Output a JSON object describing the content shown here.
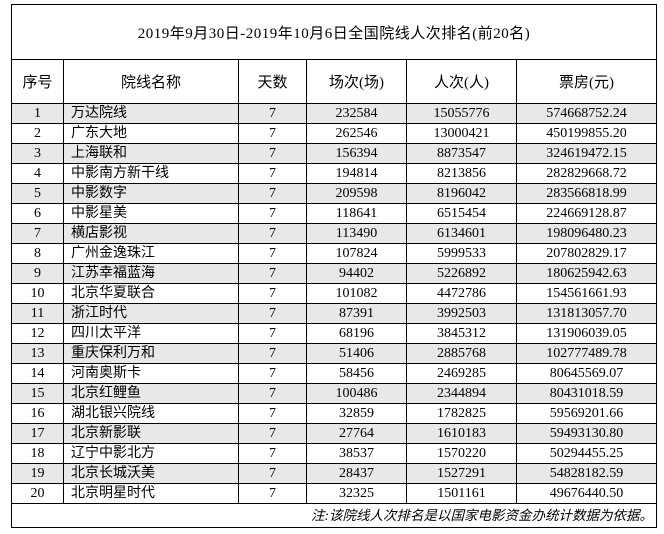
{
  "title": "2019年9月30日-2019年10月6日全国院线人次排名(前20名)",
  "note": "注:该院线人次排名是以国家电影资金办统计数据为依据。",
  "colors": {
    "stripe_row_bg": "#e8e8e8",
    "border": "#000000",
    "text": "#000000",
    "background": "#ffffff"
  },
  "table": {
    "headers": [
      "序号",
      "院线名称",
      "天数",
      "场次(场)",
      "人次(人)",
      "票房(元)"
    ],
    "column_keys": [
      "rank",
      "name",
      "days",
      "sessions",
      "admissions",
      "box_office"
    ],
    "rows": [
      {
        "rank": "1",
        "name": "万达院线",
        "days": "7",
        "sessions": "232584",
        "admissions": "15055776",
        "box_office": "574668752.24"
      },
      {
        "rank": "2",
        "name": "广东大地",
        "days": "7",
        "sessions": "262546",
        "admissions": "13000421",
        "box_office": "450199855.20"
      },
      {
        "rank": "3",
        "name": "上海联和",
        "days": "7",
        "sessions": "156394",
        "admissions": "8873547",
        "box_office": "324619472.15"
      },
      {
        "rank": "4",
        "name": "中影南方新干线",
        "days": "7",
        "sessions": "194814",
        "admissions": "8213856",
        "box_office": "282829668.72"
      },
      {
        "rank": "5",
        "name": "中影数字",
        "days": "7",
        "sessions": "209598",
        "admissions": "8196042",
        "box_office": "283566818.99"
      },
      {
        "rank": "6",
        "name": "中影星美",
        "days": "7",
        "sessions": "118641",
        "admissions": "6515454",
        "box_office": "224669128.87"
      },
      {
        "rank": "7",
        "name": "横店影视",
        "days": "7",
        "sessions": "113490",
        "admissions": "6134601",
        "box_office": "198096480.23"
      },
      {
        "rank": "8",
        "name": "广州金逸珠江",
        "days": "7",
        "sessions": "107824",
        "admissions": "5999533",
        "box_office": "207802829.17"
      },
      {
        "rank": "9",
        "name": "江苏幸福蓝海",
        "days": "7",
        "sessions": "94402",
        "admissions": "5226892",
        "box_office": "180625942.63"
      },
      {
        "rank": "10",
        "name": "北京华夏联合",
        "days": "7",
        "sessions": "101082",
        "admissions": "4472786",
        "box_office": "154561661.93"
      },
      {
        "rank": "11",
        "name": "浙江时代",
        "days": "7",
        "sessions": "87391",
        "admissions": "3992503",
        "box_office": "131813057.70"
      },
      {
        "rank": "12",
        "name": "四川太平洋",
        "days": "7",
        "sessions": "68196",
        "admissions": "3845312",
        "box_office": "131906039.05"
      },
      {
        "rank": "13",
        "name": "重庆保利万和",
        "days": "7",
        "sessions": "51406",
        "admissions": "2885768",
        "box_office": "102777489.78"
      },
      {
        "rank": "14",
        "name": "河南奥斯卡",
        "days": "7",
        "sessions": "58456",
        "admissions": "2469285",
        "box_office": "80645569.07"
      },
      {
        "rank": "15",
        "name": "北京红鲤鱼",
        "days": "7",
        "sessions": "100486",
        "admissions": "2344894",
        "box_office": "80431018.59"
      },
      {
        "rank": "16",
        "name": "湖北银兴院线",
        "days": "7",
        "sessions": "32859",
        "admissions": "1782825",
        "box_office": "59569201.66"
      },
      {
        "rank": "17",
        "name": "北京新影联",
        "days": "7",
        "sessions": "27764",
        "admissions": "1610183",
        "box_office": "59493130.80"
      },
      {
        "rank": "18",
        "name": "辽宁中影北方",
        "days": "7",
        "sessions": "38537",
        "admissions": "1570220",
        "box_office": "50294455.25"
      },
      {
        "rank": "19",
        "name": "北京长城沃美",
        "days": "7",
        "sessions": "28437",
        "admissions": "1527291",
        "box_office": "54828182.59"
      },
      {
        "rank": "20",
        "name": "北京明星时代",
        "days": "7",
        "sessions": "32325",
        "admissions": "1501161",
        "box_office": "49676440.50"
      }
    ]
  }
}
